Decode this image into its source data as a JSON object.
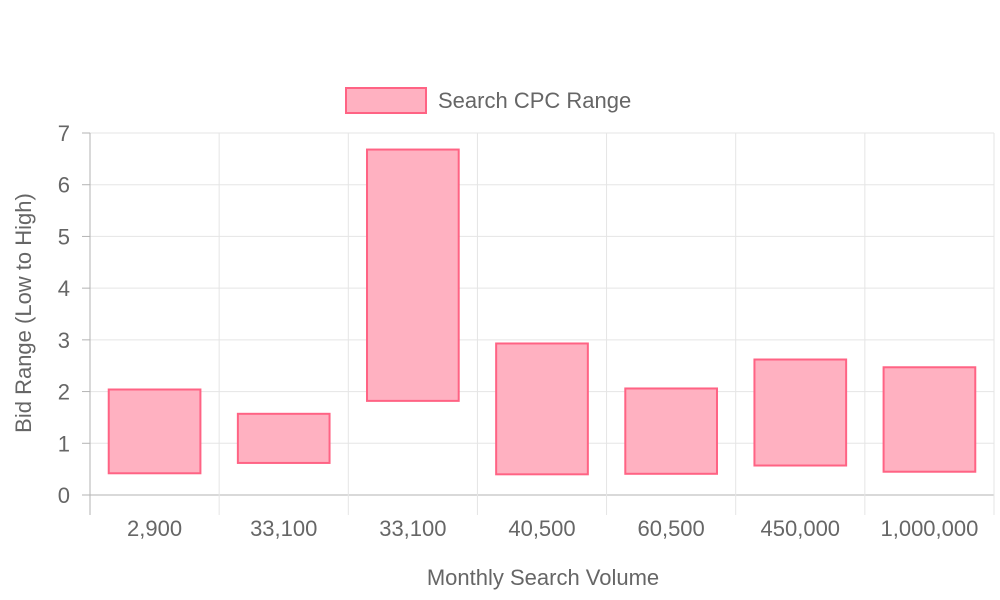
{
  "chart_data": {
    "type": "bar",
    "subtype": "floating-range",
    "title": "",
    "xlabel": "Monthly Search Volume",
    "ylabel": "Bid Range (Low to High)",
    "categories": [
      "2,900",
      "33,100",
      "33,100",
      "40,500",
      "60,500",
      "450,000",
      "1,000,000"
    ],
    "series": [
      {
        "name": "Search CPC Range",
        "low": [
          0.42,
          0.62,
          1.82,
          0.4,
          0.41,
          0.57,
          0.45
        ],
        "high": [
          2.04,
          1.57,
          6.68,
          2.93,
          2.06,
          2.62,
          2.47
        ]
      }
    ],
    "ylim": [
      0,
      7
    ],
    "yticks": [
      0,
      1,
      2,
      3,
      4,
      5,
      6,
      7
    ],
    "grid": true,
    "legend_position": "top",
    "colors": {
      "fill": "#ffb1c1",
      "stroke": "#ff6384",
      "grid": "#e5e5e5",
      "axis": "#b3b3b3",
      "text": "#666666"
    }
  }
}
